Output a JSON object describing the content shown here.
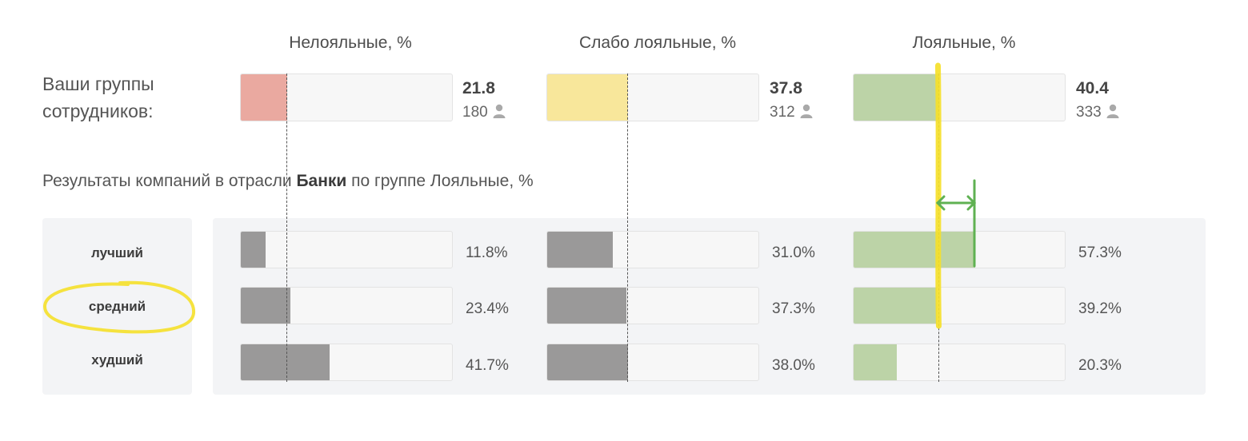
{
  "chart_data": {
    "type": "bar",
    "title": "",
    "columns": [
      "Нелояльные, %",
      "Слабо лояльные, %",
      "Лояльные, %"
    ],
    "group_label": "Ваши группы сотрудников:",
    "your_groups": [
      {
        "value": 21.8,
        "value_label": "21.8",
        "count": "180",
        "color": "#eaa9a0"
      },
      {
        "value": 37.8,
        "value_label": "37.8",
        "count": "312",
        "color": "#f8e79b"
      },
      {
        "value": 40.4,
        "value_label": "40.4",
        "count": "333",
        "color": "#bcd3a7"
      }
    ],
    "subtitle_pre": "Результаты компаний в отрасли",
    "subtitle_bold": "Банки",
    "subtitle_post": "по группе Лояльные, %",
    "xlim": [
      0,
      100
    ],
    "benchmark_rows": [
      {
        "label": "лучший",
        "values": [
          11.8,
          31.0,
          57.3
        ],
        "value_labels": [
          "11.8%",
          "31.0%",
          "57.3%"
        ]
      },
      {
        "label": "средний",
        "values": [
          23.4,
          37.3,
          39.2
        ],
        "value_labels": [
          "23.4%",
          "37.3%",
          "39.2%"
        ]
      },
      {
        "label": "худший",
        "values": [
          41.7,
          38.0,
          20.3
        ],
        "value_labels": [
          "41.7%",
          "38.0%",
          "20.3%"
        ]
      }
    ],
    "colors": {
      "benchmark_bar": "#9a9999",
      "loyal_bar": "#bcd3a7",
      "highlight_yellow": "#f5e02a",
      "annotation_green": "#5fb152"
    }
  }
}
